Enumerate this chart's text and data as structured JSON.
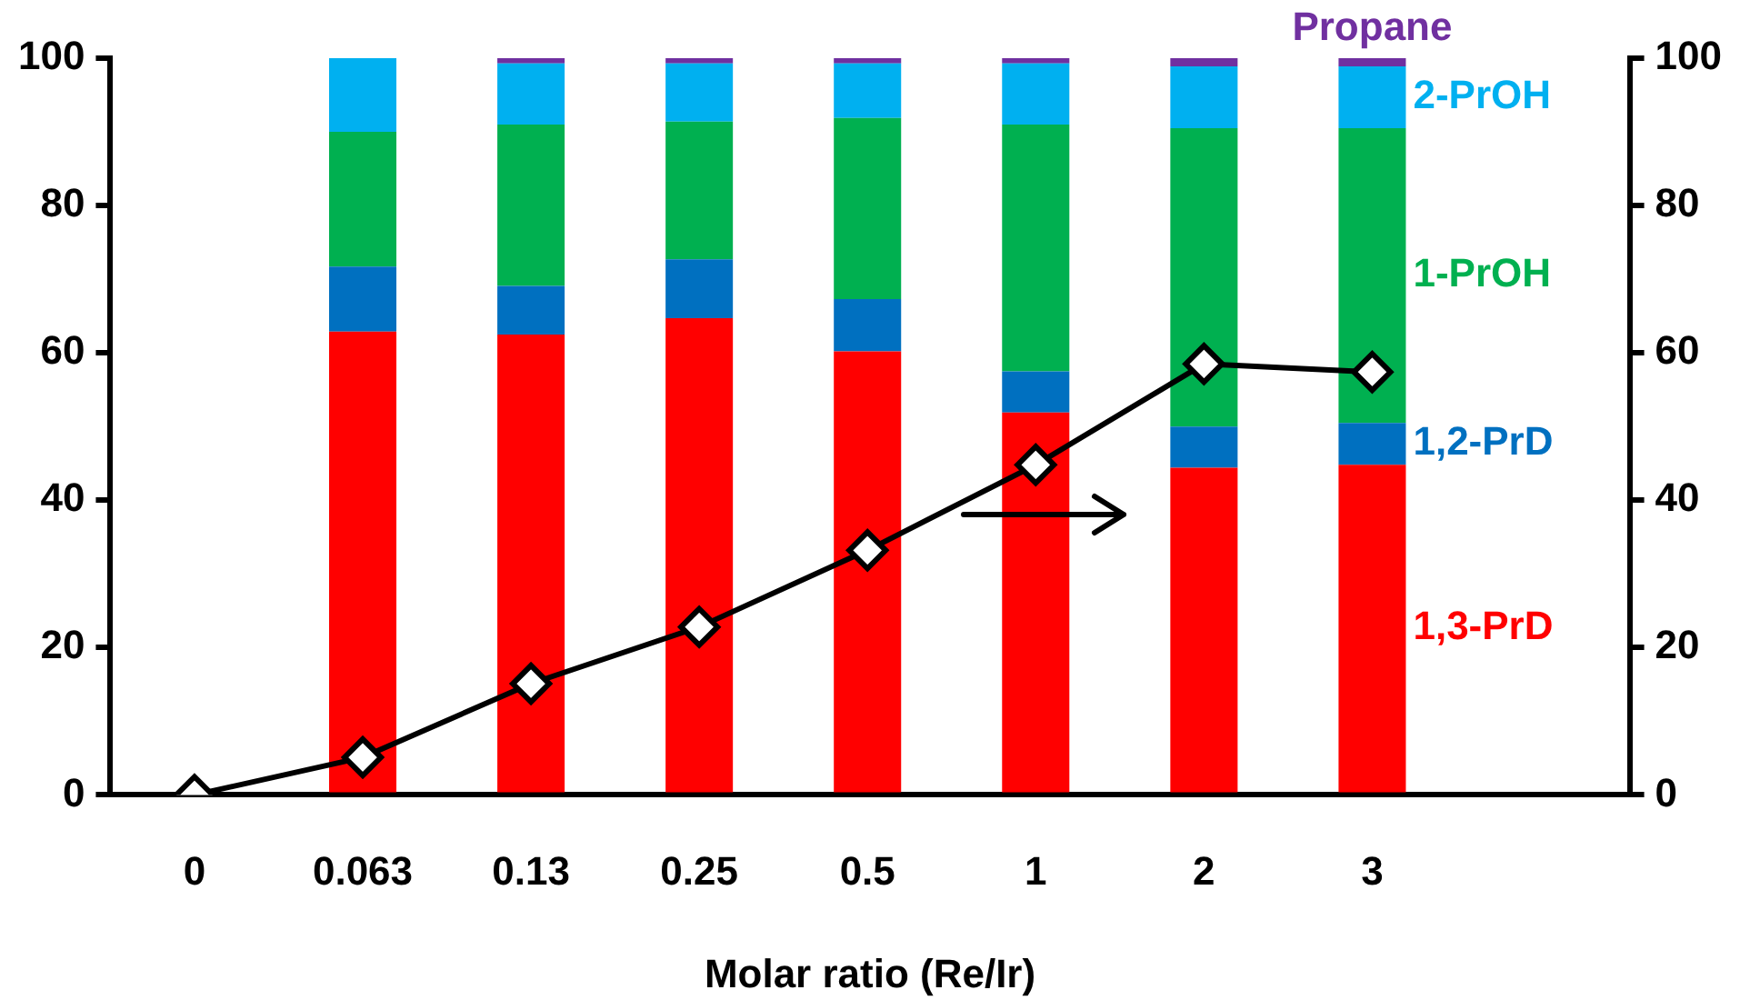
{
  "chart_data": {
    "type": "bar",
    "stacked": true,
    "xlabel": "Molar ratio (Re/Ir)",
    "categories": [
      "0",
      "0.063",
      "0.13",
      "0.25",
      "0.5",
      "1",
      "2",
      "3"
    ],
    "series": [
      {
        "name": "1,3-PrD",
        "color": "#ff0000",
        "values": [
          null,
          62.9,
          62.5,
          64.7,
          60.2,
          51.9,
          44.4,
          44.8
        ]
      },
      {
        "name": "1,2-PrD",
        "color": "#0070c0",
        "values": [
          null,
          8.8,
          6.6,
          8.0,
          7.1,
          5.6,
          5.6,
          5.7
        ]
      },
      {
        "name": "1-PrOH",
        "color": "#00b050",
        "values": [
          null,
          18.3,
          21.9,
          18.7,
          24.6,
          33.5,
          40.5,
          40.0
        ]
      },
      {
        "name": "2-PrOH",
        "color": "#00b0f0",
        "values": [
          null,
          10.0,
          8.3,
          7.9,
          7.4,
          8.3,
          8.4,
          8.4
        ]
      },
      {
        "name": "Propane",
        "color": "#7030a0",
        "values": [
          null,
          0,
          0.7,
          0.7,
          0.7,
          0.7,
          1.1,
          1.1
        ]
      },
      {
        "type": "line",
        "axis": "y2",
        "color": "#000000",
        "values": [
          0,
          5.1,
          15.1,
          22.8,
          33.2,
          44.8,
          58.5,
          57.4
        ]
      }
    ],
    "ylim": [
      0,
      100
    ],
    "yticks": [
      0,
      20,
      40,
      60,
      80,
      100
    ],
    "y2lim": [
      0,
      100
    ],
    "y2ticks": [
      0,
      20,
      40,
      60,
      80,
      100
    ],
    "marker": "diamond",
    "line_style": "solid",
    "grid": false,
    "legend": false
  }
}
